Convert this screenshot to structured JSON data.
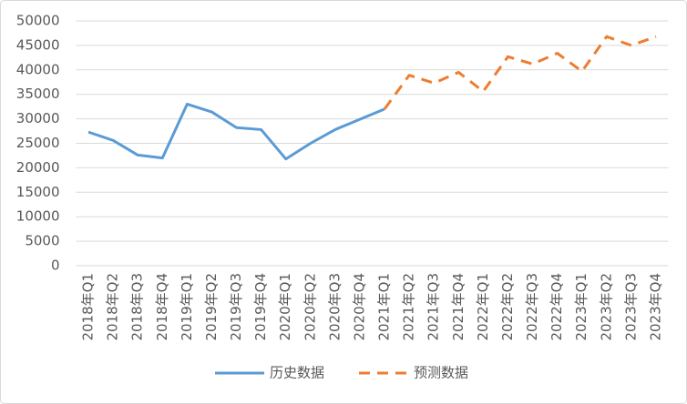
{
  "chart_data": {
    "type": "line",
    "categories": [
      "2018年Q1",
      "2018年Q2",
      "2018年Q3",
      "2018年Q4",
      "2019年Q1",
      "2019年Q2",
      "2019年Q3",
      "2019年Q4",
      "2020年Q1",
      "2020年Q2",
      "2020年Q3",
      "2020年Q4",
      "2021年Q1",
      "2021年Q2",
      "2021年Q3",
      "2021年Q4",
      "2022年Q1",
      "2022年Q2",
      "2022年Q3",
      "2022年Q4",
      "2023年Q1",
      "2023年Q2",
      "2023年Q3",
      "2023年Q4"
    ],
    "series": [
      {
        "name": "历史数据",
        "color": "#5b9bd5",
        "dash": false,
        "values": [
          27300,
          25600,
          22600,
          22000,
          33000,
          31400,
          28200,
          27800,
          21800,
          25000,
          27800,
          29900,
          32000,
          null,
          null,
          null,
          null,
          null,
          null,
          null,
          null,
          null,
          null,
          null
        ]
      },
      {
        "name": "预测数据",
        "color": "#ed7d31",
        "dash": true,
        "values": [
          null,
          null,
          null,
          null,
          null,
          null,
          null,
          null,
          null,
          null,
          null,
          null,
          32000,
          38900,
          37300,
          39500,
          35600,
          42700,
          41200,
          43400,
          39700,
          46800,
          45000,
          46800
        ]
      }
    ],
    "ylim": [
      0,
      50000
    ],
    "yticks": [
      0,
      5000,
      10000,
      15000,
      20000,
      25000,
      30000,
      35000,
      40000,
      45000,
      50000
    ],
    "grid": true,
    "legend": "bottom"
  }
}
